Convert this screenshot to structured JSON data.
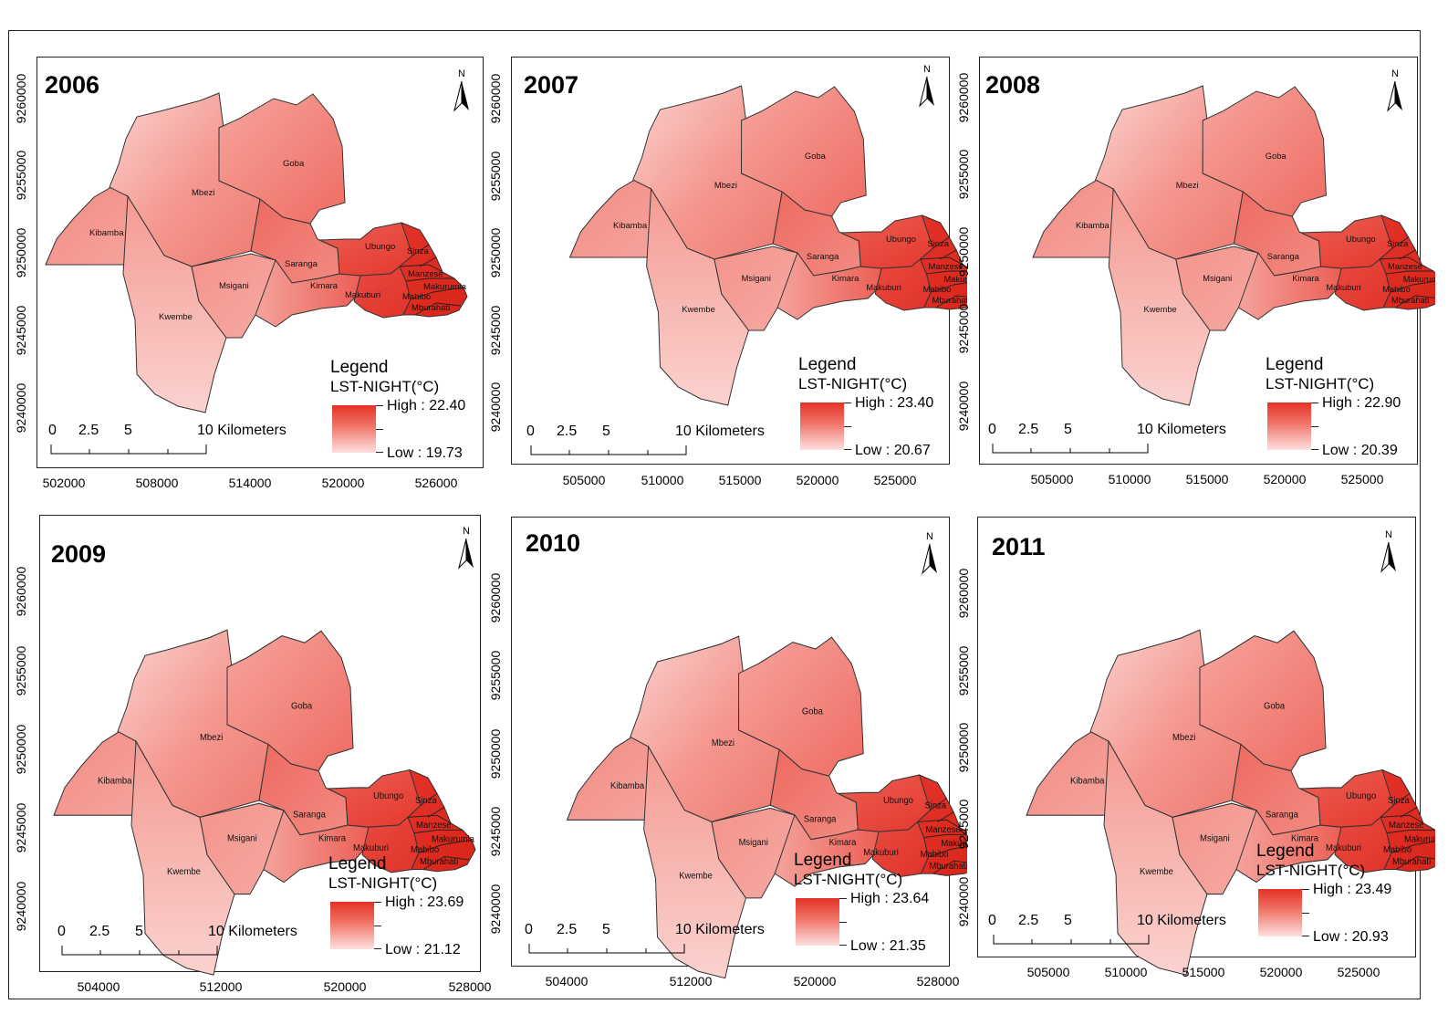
{
  "colors": {
    "ramp_high": "#e53125",
    "ramp_low": "#fde0df",
    "outline": "#333333"
  },
  "legend_title": "Legend",
  "legend_subtitle": "LST-NIGHT(°C)",
  "scale_labels": [
    "0",
    "2.5",
    "5",
    "10 Kilometers"
  ],
  "north_letter": "N",
  "wards": [
    "Goba",
    "Mbezi",
    "Kibamba",
    "Ubungo",
    "Sinza",
    "Manzese",
    "Makurumla",
    "Saranga",
    "Msigani",
    "Kimara",
    "Makuburi",
    "Mabibo",
    "Mburahati",
    "Kwembe"
  ],
  "panels": [
    {
      "year": "2006",
      "high": "High : 22.40",
      "low": "Low : 19.73",
      "x_ticks": [
        "502000",
        "508000",
        "514000",
        "520000",
        "526000"
      ],
      "y_ticks": [
        "9260000",
        "9255000",
        "9250000",
        "9245000",
        "9240000"
      ]
    },
    {
      "year": "2007",
      "high": "High : 23.40",
      "low": "Low : 20.67",
      "x_ticks": [
        "505000",
        "510000",
        "515000",
        "520000",
        "525000"
      ],
      "y_ticks": [
        "9260000",
        "9255000",
        "9250000",
        "9245000",
        "9240000"
      ]
    },
    {
      "year": "2008",
      "high": "High : 22.90",
      "low": "Low : 20.39",
      "x_ticks": [
        "505000",
        "510000",
        "515000",
        "520000",
        "525000"
      ],
      "y_ticks": [
        "9260000",
        "9255000",
        "9250000",
        "9245000",
        "9240000"
      ]
    },
    {
      "year": "2009",
      "high": "High : 23.69",
      "low": "Low : 21.12",
      "x_ticks": [
        "504000",
        "512000",
        "520000",
        "528000"
      ],
      "y_ticks": [
        "9260000",
        "9255000",
        "9250000",
        "9245000",
        "9240000"
      ]
    },
    {
      "year": "2010",
      "high": "High : 23.64",
      "low": "Low : 21.35",
      "x_ticks": [
        "504000",
        "512000",
        "520000",
        "528000"
      ],
      "y_ticks": [
        "9260000",
        "9255000",
        "9250000",
        "9245000",
        "9240000"
      ]
    },
    {
      "year": "2011",
      "high": "High : 23.49",
      "low": "Low : 20.93",
      "x_ticks": [
        "505000",
        "510000",
        "515000",
        "520000",
        "525000"
      ],
      "y_ticks": [
        "9260000",
        "9255000",
        "9250000",
        "9245000",
        "9240000"
      ]
    }
  ]
}
